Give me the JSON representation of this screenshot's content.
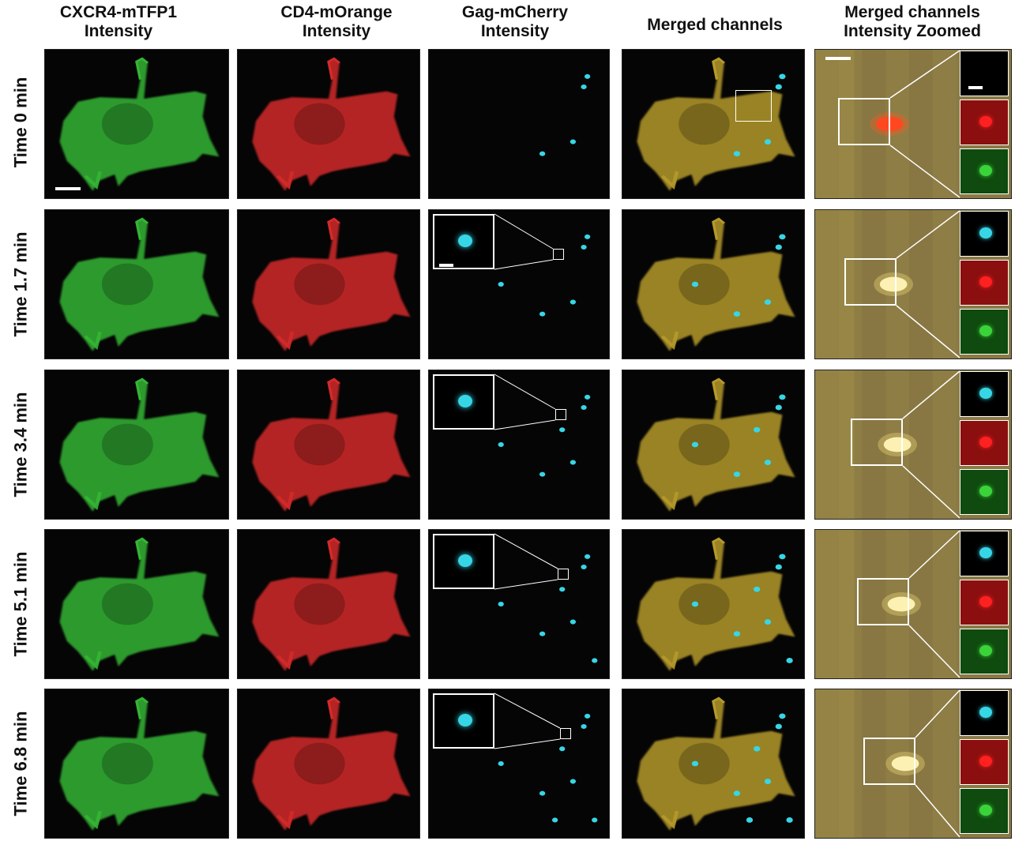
{
  "columns": [
    {
      "id": "cxcr4",
      "line1": "CXCR4-mTFP1",
      "line2": "Intensity",
      "color": "#35b535"
    },
    {
      "id": "cd4",
      "line1": "CD4-mOrange",
      "line2": "Intensity",
      "color": "#d42a2a"
    },
    {
      "id": "gag",
      "line1": "Gag-mCherry",
      "line2": "Intensity",
      "color": "#37d6e6"
    },
    {
      "id": "merged",
      "line1": "Merged channels",
      "line2": "",
      "color": "#b59a2a"
    },
    {
      "id": "zoom",
      "line1": "Merged channels",
      "line2": "Intensity  Zoomed",
      "color": "#a88a3a"
    }
  ],
  "rows": [
    {
      "label": "Time 0 min"
    },
    {
      "label": "Time 1.7 min"
    },
    {
      "label": "Time 3.4 min"
    },
    {
      "label": "Time 5.1 min"
    },
    {
      "label": "Time 6.8 min"
    }
  ],
  "colors": {
    "green": "#35b535",
    "red": "#d42a2a",
    "cyan": "#37d6e6",
    "merged": "#b59a2a",
    "zoom_bg": "#8a7a45",
    "particle_core": "#fffbd0",
    "background": "#050505"
  }
}
